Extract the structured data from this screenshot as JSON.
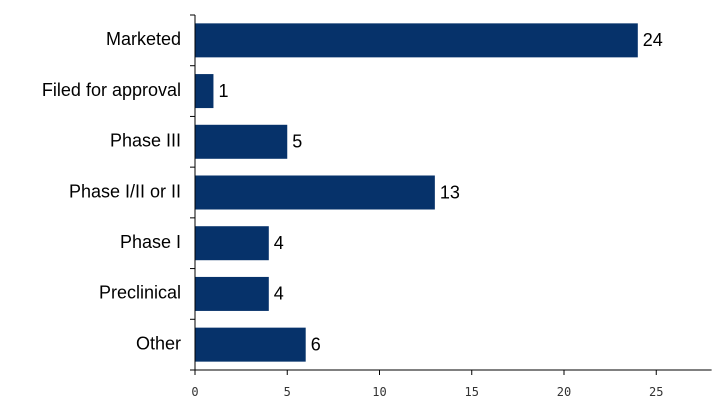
{
  "chart_data": {
    "type": "bar",
    "orientation": "horizontal",
    "categories": [
      "Marketed",
      "Filed for approval",
      "Phase III",
      "Phase I/II or II",
      "Phase I",
      "Preclinical",
      "Other"
    ],
    "values": [
      24,
      1,
      5,
      13,
      4,
      4,
      6
    ],
    "title": "",
    "xlabel": "",
    "ylabel": "",
    "xlim": [
      0,
      28
    ],
    "xticks": [
      0,
      5,
      10,
      15,
      20,
      25
    ],
    "xtick_labels": [
      "0",
      "5",
      "10",
      "15",
      "20",
      "25"
    ],
    "grid": false,
    "legend": "none",
    "data_labels": true,
    "colors": {
      "bar": "#06326a",
      "axis": "#000000"
    }
  }
}
